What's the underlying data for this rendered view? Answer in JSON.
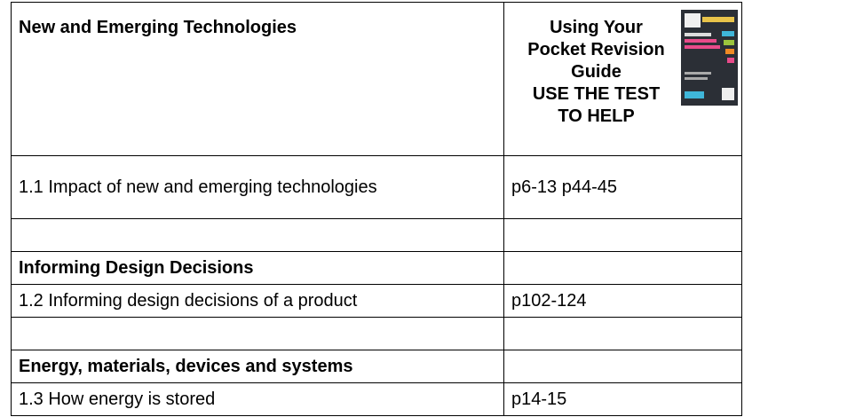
{
  "table": {
    "header": {
      "left": "New and Emerging Technologies",
      "right_title": "Using Your Pocket Revision Guide",
      "right_note": "USE THE TEST TO HELP"
    },
    "rows": [
      [
        "1.1 Impact of new and emerging technologies",
        "p6-13 p44-45"
      ],
      [
        "Informing Design Decisions"
      ],
      [
        "1.2 Informing design decisions of a product",
        "p102-124"
      ],
      [
        "Energy, materials, devices and systems"
      ],
      [
        "1.3 How energy is stored",
        "p14-15"
      ]
    ]
  }
}
